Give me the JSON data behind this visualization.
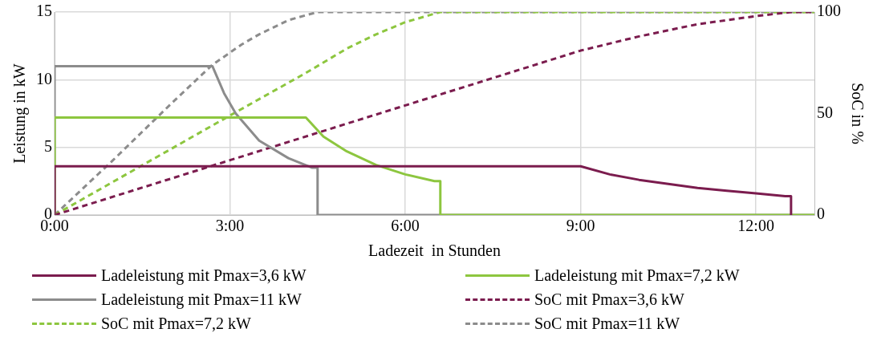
{
  "chart_data": {
    "type": "line",
    "xlabel": "Ladezeit  in Stunden",
    "ylabel": "Leistung in kW",
    "y2label": "SoC in %",
    "xlim": [
      0,
      13
    ],
    "xticks": [
      {
        "value": 0,
        "label": "0:00"
      },
      {
        "value": 3,
        "label": "3:00"
      },
      {
        "value": 6,
        "label": "6:00"
      },
      {
        "value": 9,
        "label": "9:00"
      },
      {
        "value": 12,
        "label": "12:00"
      }
    ],
    "ylim": [
      0,
      15
    ],
    "yticks": [
      0,
      5,
      10,
      15
    ],
    "y2lim": [
      0,
      100
    ],
    "y2ticks": [
      0,
      50,
      100
    ],
    "grid": true,
    "legend": "bottom",
    "marker": "none",
    "line_style": "solid",
    "series": [
      {
        "name": "Ladeleistung mit Pmax=3,6 kW",
        "color": "#7b1c4e",
        "x": [
          0,
          0,
          9,
          9.5,
          10,
          10.5,
          11,
          11.5,
          12,
          12.5,
          12.6,
          12.6
        ],
        "values": [
          0,
          3.6,
          3.6,
          3.0,
          2.6,
          2.3,
          2.0,
          1.8,
          1.6,
          1.4,
          1.4,
          0
        ]
      },
      {
        "name": "Ladeleistung mit Pmax=7,2 kW",
        "color": "#8dc63f",
        "x": [
          0,
          0,
          4.3,
          4.6,
          5,
          5.5,
          6,
          6.5,
          6.6,
          6.6,
          13
        ],
        "values": [
          0,
          7.2,
          7.2,
          5.8,
          4.7,
          3.7,
          3.0,
          2.5,
          2.5,
          0,
          0
        ]
      },
      {
        "name": "Ladeleistung mit Pmax=11 kW",
        "color": "#8c8c8c",
        "x": [
          0,
          0,
          2.7,
          2.9,
          3.1,
          3.5,
          4,
          4.4,
          4.5,
          4.5,
          13
        ],
        "values": [
          0,
          11,
          11,
          9,
          7.5,
          5.5,
          4.2,
          3.5,
          3.5,
          0,
          0
        ]
      },
      {
        "name": "SoC mit Pmax=3,6 kW",
        "color": "#7b1c4e",
        "axis": "y2",
        "line_style": "dashed",
        "x": [
          0,
          3,
          6,
          9,
          10,
          11,
          12,
          12.6,
          13
        ],
        "values": [
          0,
          27,
          54,
          81,
          88,
          94,
          98,
          100,
          100
        ]
      },
      {
        "name": "SoC mit Pmax=7,2 kW",
        "color": "#8dc63f",
        "axis": "y2",
        "line_style": "dashed",
        "x": [
          0,
          3,
          4.3,
          5,
          5.5,
          6,
          6.6,
          13
        ],
        "values": [
          0,
          49,
          70,
          82,
          89,
          95,
          100,
          100
        ]
      },
      {
        "name": "SoC mit Pmax=11 kW",
        "color": "#8c8c8c",
        "axis": "y2",
        "line_style": "dashed",
        "x": [
          0,
          1,
          2,
          2.7,
          3.2,
          3.5,
          4,
          4.5,
          13
        ],
        "values": [
          0,
          27,
          55,
          74,
          84,
          89,
          96,
          100,
          100
        ]
      }
    ]
  }
}
